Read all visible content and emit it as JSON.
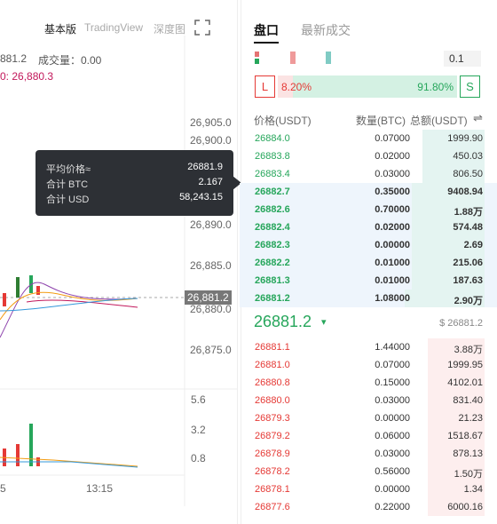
{
  "chart_panel": {
    "tabs": [
      "基本版",
      "TradingView",
      "深度图"
    ],
    "info": {
      "close": "881.2",
      "volume": "成交量：0.00",
      "ma": "0: 26,880.3"
    },
    "price_axis": [
      "26,905.0",
      "26,900.0",
      "26,890.0",
      "26,885.0",
      "26,880.0",
      "26,875.0"
    ],
    "last_price_tag": "26,881.2",
    "volume_axis": [
      "5.6",
      "3.2",
      "0.8"
    ],
    "time_axis": [
      "5",
      "13:15"
    ],
    "tooltip": {
      "rows": [
        [
          "平均价格≈",
          "26881.9"
        ],
        [
          "合计 BTC",
          "2.167"
        ],
        [
          "合计 USD",
          "58,243.15"
        ]
      ]
    }
  },
  "book": {
    "tabs": [
      "盘口",
      "最新成交"
    ],
    "precision": "0.1",
    "long_label": "L",
    "short_label": "S",
    "long_ratio": {
      "value": 8.2,
      "label": "8.20%"
    },
    "short_ratio": {
      "value": 91.8,
      "label": "91.80%"
    },
    "headers": [
      "价格(USDT)",
      "数量(BTC)",
      "总额(USDT)"
    ],
    "asks": [
      [
        "26884.0",
        "0.07000",
        "1999.90"
      ],
      [
        "26883.8",
        "0.02000",
        "450.03"
      ],
      [
        "26883.4",
        "0.03000",
        "806.50"
      ],
      [
        "26882.7",
        "0.35000",
        "9408.94"
      ],
      [
        "26882.6",
        "0.70000",
        "1.88万"
      ],
      [
        "26882.4",
        "0.02000",
        "574.48"
      ],
      [
        "26882.3",
        "0.00000",
        "2.69"
      ],
      [
        "26882.2",
        "0.01000",
        "215.06"
      ],
      [
        "26881.3",
        "0.01000",
        "187.63"
      ],
      [
        "26881.2",
        "1.08000",
        "2.90万"
      ]
    ],
    "mid_price": "26881.2",
    "mid_arrow": "▾",
    "index_price": "$ 26881.2",
    "bids": [
      [
        "26881.1",
        "1.44000",
        "3.88万"
      ],
      [
        "26881.0",
        "0.07000",
        "1999.95"
      ],
      [
        "26880.8",
        "0.15000",
        "4102.01"
      ],
      [
        "26880.0",
        "0.03000",
        "831.40"
      ],
      [
        "26879.3",
        "0.00000",
        "21.23"
      ],
      [
        "26879.2",
        "0.06000",
        "1518.67"
      ],
      [
        "26878.9",
        "0.03000",
        "878.13"
      ],
      [
        "26878.2",
        "0.56000",
        "1.50万"
      ],
      [
        "26878.1",
        "0.00000",
        "1.34"
      ],
      [
        "26877.6",
        "0.22000",
        "6000.16"
      ]
    ]
  }
}
